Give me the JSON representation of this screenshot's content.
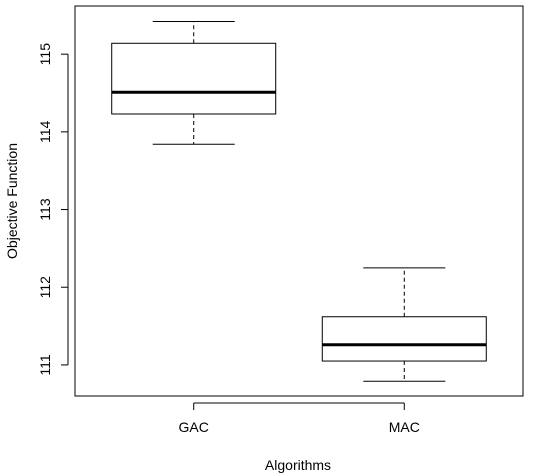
{
  "chart_data": {
    "type": "boxplot",
    "title": "",
    "xlabel": "Algorithms",
    "ylabel": "Objective Function",
    "categories": [
      "GAC",
      "MAC"
    ],
    "boxes": [
      {
        "category": "GAC",
        "whisker_low": 113.84,
        "q1": 114.23,
        "median": 114.51,
        "q3": 115.14,
        "whisker_high": 115.42
      },
      {
        "category": "MAC",
        "whisker_low": 110.79,
        "q1": 111.05,
        "median": 111.26,
        "q3": 111.62,
        "whisker_high": 112.25
      }
    ],
    "y_ticks": [
      111,
      112,
      113,
      114,
      115
    ],
    "y_tick_labels": [
      "111",
      "112",
      "113",
      "114",
      "115"
    ],
    "ylim": [
      110.6,
      115.62
    ],
    "grid": false,
    "legend": "none"
  }
}
